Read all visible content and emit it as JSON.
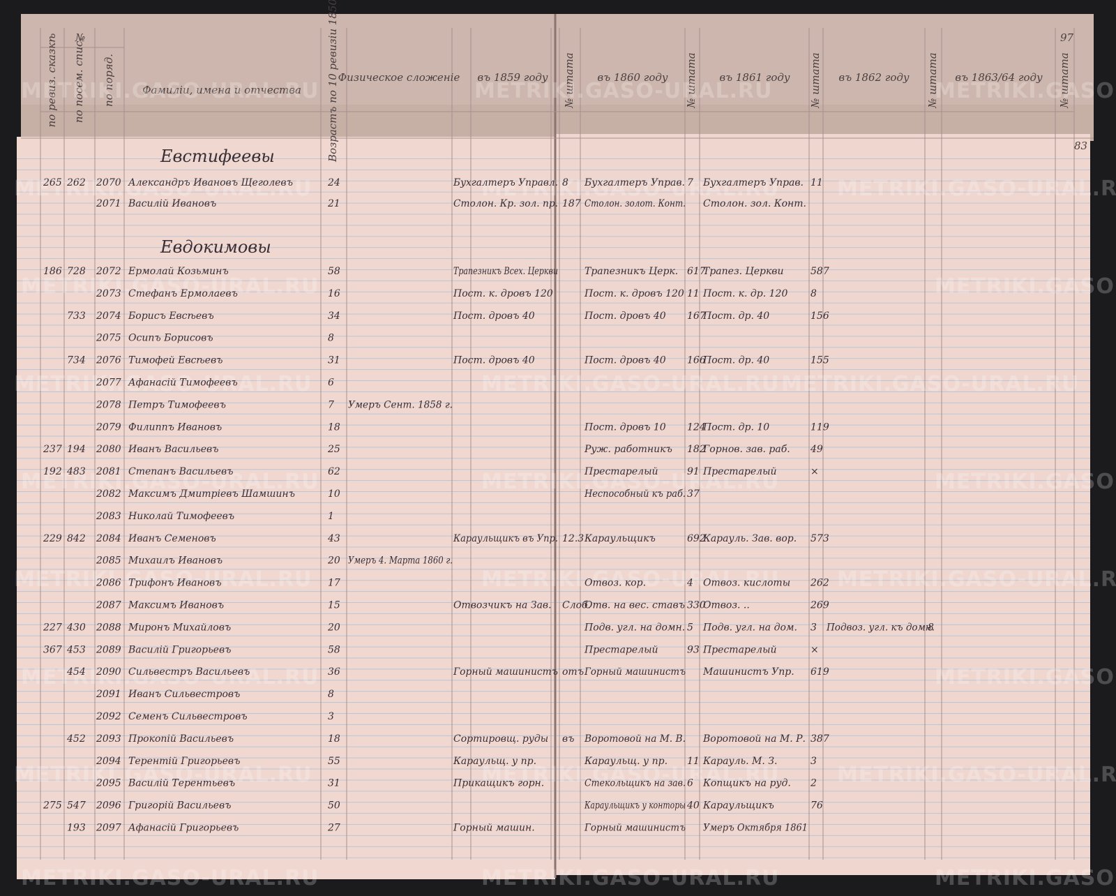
{
  "header": {
    "page_left": "97",
    "page_right": "83",
    "number_group": "№",
    "col_revision": "по ревиз. сказкѣ",
    "col_family_list": "по посем. спис.",
    "col_order": "по поряд.",
    "col_name": "Фамиліи, имена и отчества",
    "col_age": "Возрастъ по 10 ревизіи 1850",
    "col_physique": "Физическое сложеніе",
    "col_1859": "въ 1859 году",
    "col_1860": "въ 1860 году",
    "col_1861": "въ 1861 году",
    "col_1862": "въ 1862 году",
    "col_1863": "въ 1863/64 году",
    "col_staff": "№ штата"
  },
  "watermark": "METRIKI.GASO-URAL.RU",
  "families": [
    {
      "before_row": 0,
      "name": "Евстифеевы"
    },
    {
      "before_row": 2,
      "name": "Евдокимовы"
    }
  ],
  "rows": [
    {
      "n1": "265",
      "n2": "262",
      "n3": "2070",
      "name": "Александръ Ивановъ Щеголевъ",
      "age": "24",
      "y1859": "Бухгалтеръ Управл.",
      "s1859": "8",
      "y1860": "Бухгалтеръ Управ.",
      "s1860": "7",
      "y1861": "Бухгалтеръ Управ.",
      "s1861": "11"
    },
    {
      "n3": "2071",
      "name": "Василій Ивановъ",
      "age": "21",
      "y1859": "Столон. Кр. зол. пр.",
      "s1859": "187",
      "y1860": "Столон. золот. Конт.",
      "y1861": "Столон. зол. Конт."
    },
    {
      "n1": "186",
      "n2": "728",
      "n3": "2072",
      "name": "Ермолай Козьминъ",
      "age": "58",
      "y1859": "Трапезникъ Всех. Церкви",
      "y1860": "Трапезникъ Церк.",
      "s1860": "617",
      "y1861": "Трапез. Церкви",
      "s1861": "587"
    },
    {
      "n3": "2073",
      "name": "Стефанъ Ермолаевъ",
      "age": "16",
      "y1859": "Пост. к. дровъ 120",
      "y1860": "Пост. к. дровъ 120",
      "s1860": "11",
      "y1861": "Пост. к. др. 120",
      "s1861": "8"
    },
    {
      "n2": "733",
      "n3": "2074",
      "name": "Борисъ Евсѣевъ",
      "age": "34",
      "y1859": "Пост. дровъ 40",
      "y1860": "Пост. дровъ 40",
      "s1860": "167",
      "y1861": "Пост. др. 40",
      "s1861": "156"
    },
    {
      "n3": "2075",
      "name": "Осипъ Борисовъ",
      "age": "8"
    },
    {
      "n2": "734",
      "n3": "2076",
      "name": "Тимофей Евсѣевъ",
      "age": "31",
      "y1859": "Пост. дровъ 40",
      "y1860": "Пост. дровъ 40",
      "s1860": "166",
      "y1861": "Пост. др. 40",
      "s1861": "155"
    },
    {
      "n3": "2077",
      "name": "Афанасій Тимофеевъ",
      "age": "6"
    },
    {
      "n3": "2078",
      "name": "Петръ Тимофеевъ",
      "age": "7",
      "note": "Умеръ Сент. 1858 г."
    },
    {
      "n3": "2079",
      "name": "Филиппъ Ивановъ",
      "age": "18",
      "y1860": "Пост. дровъ 10",
      "s1860": "124",
      "y1861": "Пост. др. 10",
      "s1861": "119"
    },
    {
      "n1": "237",
      "n2": "194",
      "n3": "2080",
      "name": "Иванъ Васильевъ",
      "age": "25",
      "y1860": "Руж. работникъ",
      "s1860": "182",
      "y1861": "Горнов. зав. раб.",
      "s1861": "49"
    },
    {
      "n1": "192",
      "n2": "483",
      "n3": "2081",
      "name": "Степанъ Васильевъ",
      "age": "62",
      "y1860": "Престарелый",
      "s1860": "91",
      "y1861": "Престарелый",
      "s1861": "×"
    },
    {
      "n3": "2082",
      "name": "Максимъ Дмитріевъ Шамшинъ",
      "age": "10",
      "y1860": "Неспособный къ раб.",
      "s1860": "37"
    },
    {
      "n3": "2083",
      "name": "Николай Тимофеевъ",
      "age": "1"
    },
    {
      "n1": "229",
      "n2": "842",
      "n3": "2084",
      "name": "Иванъ Семеновъ",
      "age": "43",
      "y1859": "Караульщикъ въ Упр.",
      "s1859": "12.3",
      "y1860": "Караульщикъ",
      "s1860": "692",
      "y1861": "Карауль. Зав. вор.",
      "s1861": "573"
    },
    {
      "n3": "2085",
      "name": "Михаилъ Ивановъ",
      "age": "20",
      "note": "Умеръ 4. Марта 1860 г."
    },
    {
      "n3": "2086",
      "name": "Трифонъ Ивановъ",
      "age": "17",
      "y1860": "Отвоз. кор.",
      "s1860": "4",
      "y1861": "Отвоз. кислоты",
      "s1861": "262"
    },
    {
      "n3": "2087",
      "name": "Максимъ Ивановъ",
      "age": "15",
      "y1859": "Отвозчикъ на Зав.",
      "s1859": "Слоб.",
      "y1860": "Отв. на вес. ставъ",
      "s1860": "330",
      "y1861": "Отвоз. ..",
      "s1861": "269"
    },
    {
      "n1": "227",
      "n2": "430",
      "n3": "2088",
      "name": "Миронъ Михайловъ",
      "age": "20",
      "y1860": "Подв. угл. на домн.",
      "s1860": "5",
      "y1861": "Подв. угл. на дом.",
      "s1861": "3",
      "y1862": "Подвоз. угл. къ домн.",
      "s1862": "8"
    },
    {
      "n1": "367",
      "n2": "453",
      "n3": "2089",
      "name": "Василій Григорьевъ",
      "age": "58",
      "y1860": "Престарелый",
      "s1860": "93",
      "y1861": "Престарелый",
      "s1861": "×"
    },
    {
      "n2": "454",
      "n3": "2090",
      "name": "Сильвестръ Васильевъ",
      "age": "36",
      "y1859": "Горный машинистъ",
      "s1859": "отъ",
      "y1860": "Горный машинистъ",
      "y1861": "Машинистъ Упр.",
      "s1861": "619"
    },
    {
      "n3": "2091",
      "name": "Иванъ Сильвестровъ",
      "age": "8"
    },
    {
      "n3": "2092",
      "name": "Семенъ Сильвестровъ",
      "age": "3"
    },
    {
      "n2": "452",
      "n3": "2093",
      "name": "Прокопій Васильевъ",
      "age": "18",
      "y1859": "Сортировщ. руды",
      "s1859": "въ",
      "y1860": "Воротовой на М. В.",
      "y1861": "Воротовой на М. Р.",
      "s1861": "387"
    },
    {
      "n3": "2094",
      "name": "Терентій Григорьевъ",
      "age": "55",
      "y1859": "Караульщ. у пр.",
      "y1860": "Караульщ. у пр.",
      "s1860": "11",
      "y1861": "Карауль. М. З.",
      "s1861": "3"
    },
    {
      "n3": "2095",
      "name": "Василій Терентьевъ",
      "age": "31",
      "y1859": "Прикащикъ горн.",
      "y1860": "Стекольщикъ на зав.",
      "s1860": "6",
      "y1861": "Копщикъ на руд.",
      "s1861": "2"
    },
    {
      "n1": "275",
      "n2": "547",
      "n3": "2096",
      "name": "Григорій Васильевъ",
      "age": "50",
      "y1860": "Караульщикъ у конторы",
      "s1860": "40",
      "y1861": "Караульщикъ",
      "s1861": "76"
    },
    {
      "n2": "193",
      "n3": "2097",
      "name": "Афанасій Григорьевъ",
      "age": "27",
      "y1859": "Горный машин.",
      "y1860": "Горный машинистъ",
      "y1861": "Умеръ Октября 1861"
    }
  ]
}
